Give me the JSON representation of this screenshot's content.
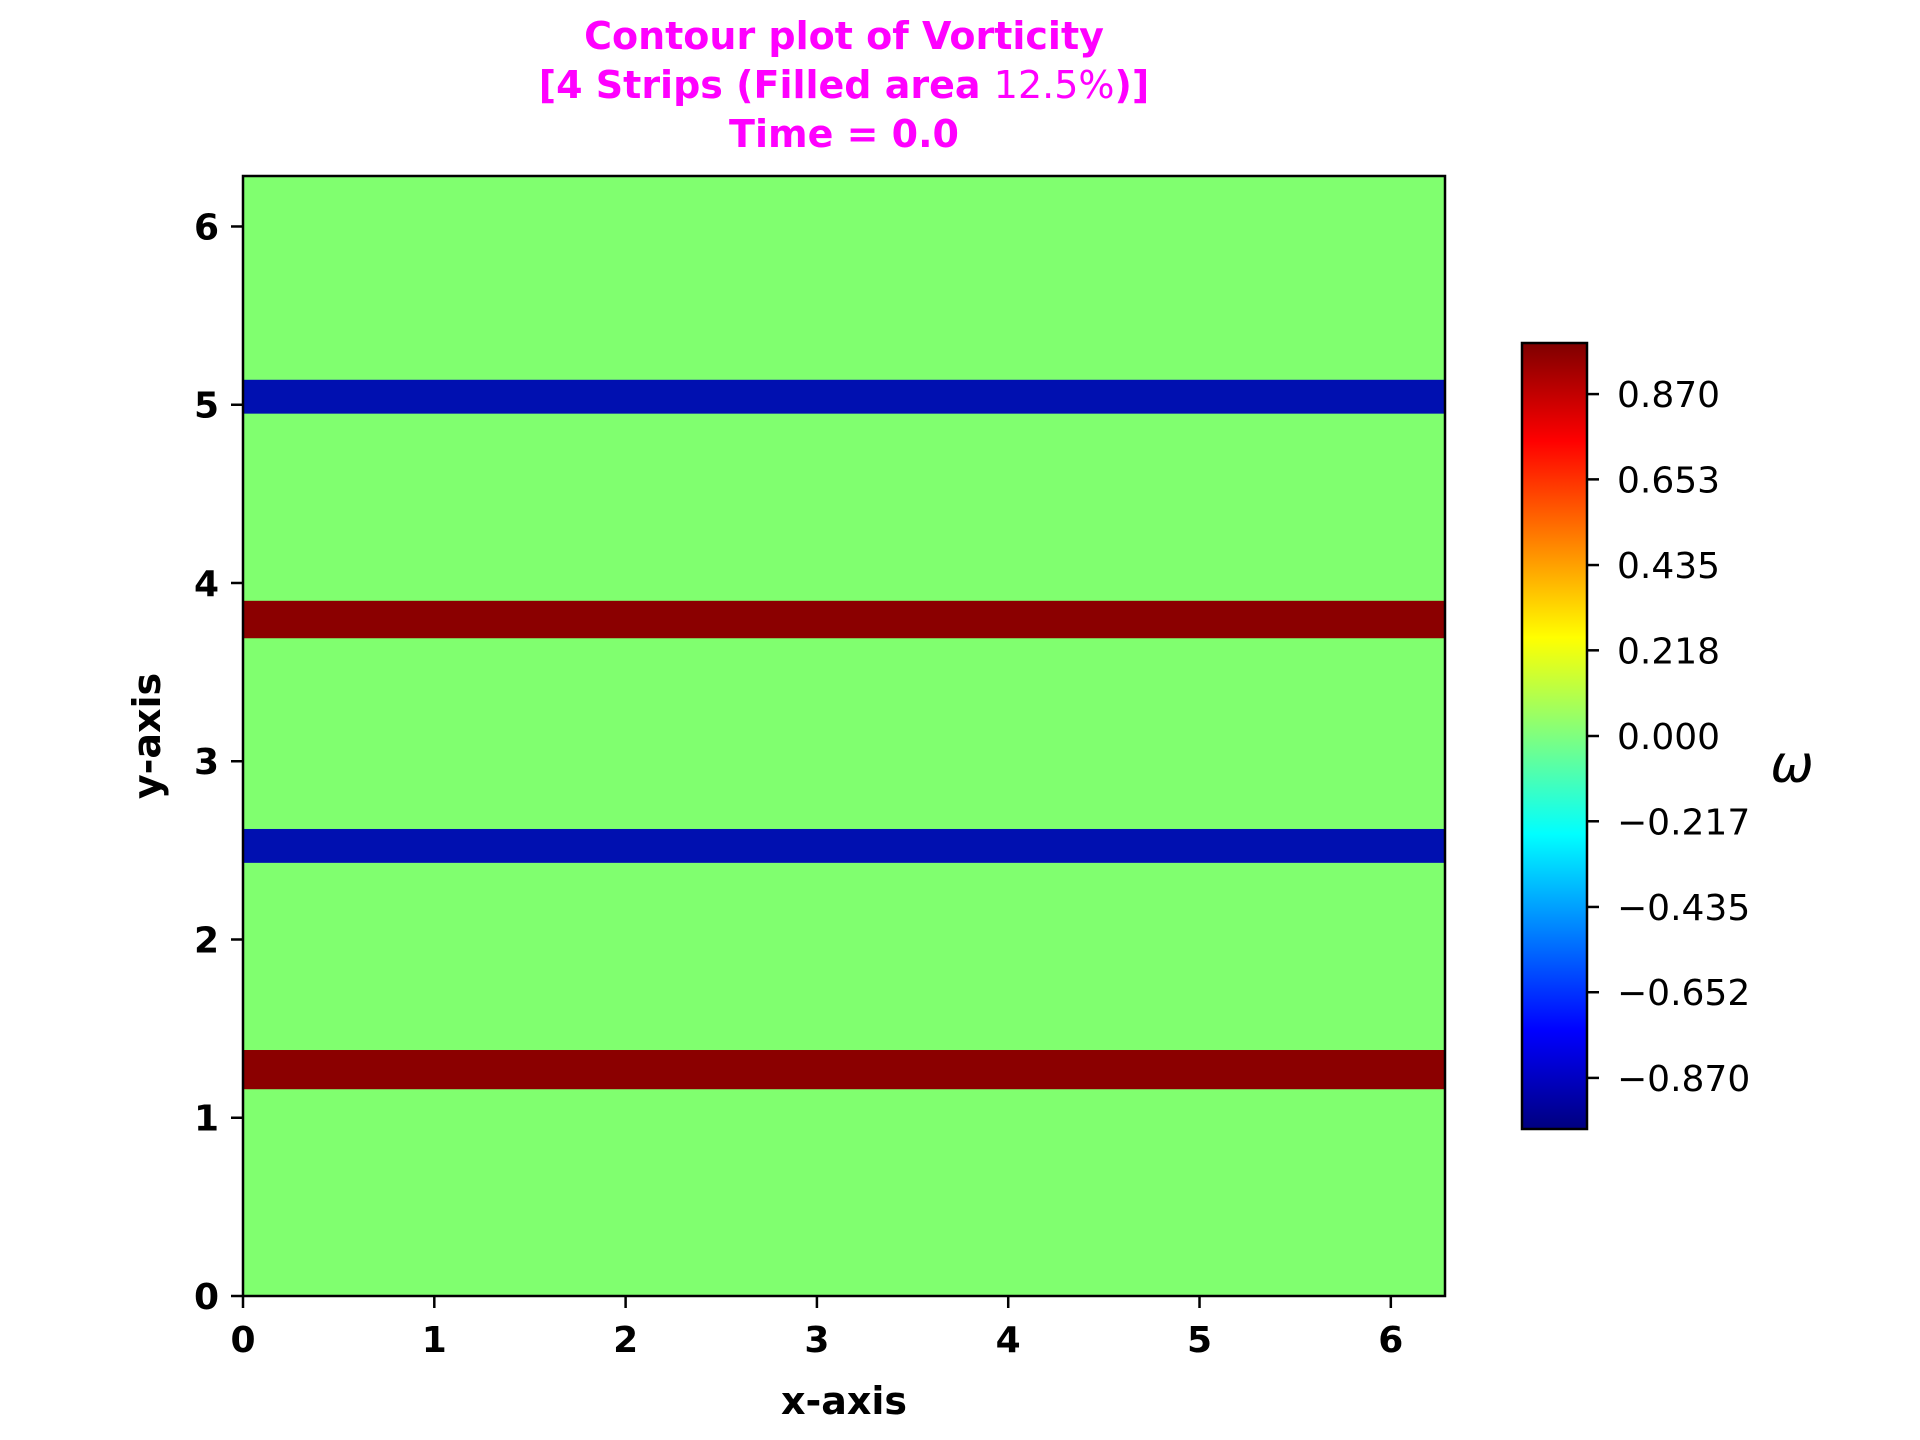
{
  "chart_data": {
    "type": "heatmap",
    "title_lines": [
      {
        "parts": [
          {
            "text": "Contour plot of Vorticity",
            "weight": "bold"
          }
        ]
      },
      {
        "parts": [
          {
            "text": "[4 Strips (Filled area ",
            "weight": "bold"
          },
          {
            "text": "12.5%",
            "weight": "normal"
          },
          {
            "text": ")]",
            "weight": "bold"
          }
        ]
      },
      {
        "parts": [
          {
            "text": "Time = 0.0",
            "weight": "bold"
          }
        ]
      }
    ],
    "title_color": "#ff00ff",
    "xlabel": "x-axis",
    "ylabel": "y-axis",
    "xlim": [
      0,
      6.2832
    ],
    "ylim": [
      0,
      6.2832
    ],
    "xticks": [
      0,
      1,
      2,
      3,
      4,
      5,
      6
    ],
    "yticks": [
      0,
      1,
      2,
      3,
      4,
      5,
      6
    ],
    "background_value": 0.0,
    "background_color": "#80ff6f",
    "strips": [
      {
        "y_min": 1.16,
        "y_max": 1.38,
        "value": 1.0,
        "color": "#8b0000"
      },
      {
        "y_min": 2.43,
        "y_max": 2.62,
        "value": -1.0,
        "color": "#0010b0"
      },
      {
        "y_min": 3.69,
        "y_max": 3.9,
        "value": 1.0,
        "color": "#8b0000"
      },
      {
        "y_min": 4.95,
        "y_max": 5.14,
        "value": -1.0,
        "color": "#0010b0"
      }
    ],
    "colorbar": {
      "label": "ω",
      "vmin": -1.0,
      "vmax": 1.0,
      "ticks": [
        {
          "value": 0.87,
          "label": "0.870"
        },
        {
          "value": 0.653,
          "label": "0.653"
        },
        {
          "value": 0.435,
          "label": "0.435"
        },
        {
          "value": 0.218,
          "label": "0.218"
        },
        {
          "value": 0.0,
          "label": "0.000"
        },
        {
          "value": -0.217,
          "label": "−0.217"
        },
        {
          "value": -0.435,
          "label": "−0.435"
        },
        {
          "value": -0.652,
          "label": "−0.652"
        },
        {
          "value": -0.87,
          "label": "−0.870"
        }
      ],
      "colormap": "jet",
      "stops": [
        "#00007f",
        "#0000ff",
        "#007fff",
        "#00ffff",
        "#7fff7f",
        "#ffff00",
        "#ff7f00",
        "#ff0000",
        "#7f0000"
      ]
    }
  }
}
